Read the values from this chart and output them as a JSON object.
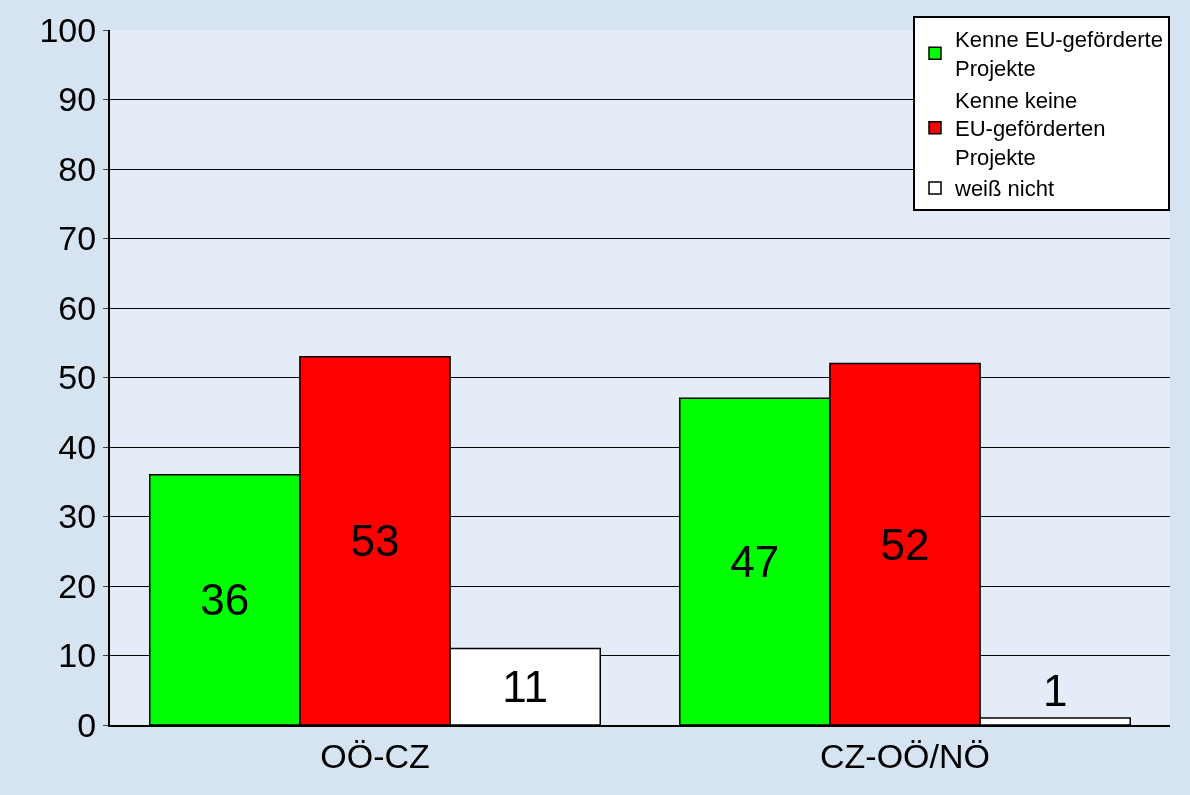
{
  "chart_data": {
    "type": "bar",
    "categories": [
      "OÖ-CZ",
      "CZ-OÖ/NÖ"
    ],
    "series": [
      {
        "name": "Kenne EU-geförderte Projekte",
        "color": "#00ff00",
        "values": [
          36,
          47
        ]
      },
      {
        "name": "Kenne keine EU-geförderten Projekte",
        "color": "#ff0000",
        "values": [
          53,
          52
        ]
      },
      {
        "name": "weiß nicht",
        "color": "#ffffff",
        "values": [
          11,
          1
        ]
      }
    ],
    "ylim": [
      0,
      100
    ],
    "yticks": [
      0,
      10,
      20,
      30,
      40,
      50,
      60,
      70,
      80,
      90,
      100
    ],
    "grid": "y",
    "legend": "top right",
    "data_labels": true
  }
}
